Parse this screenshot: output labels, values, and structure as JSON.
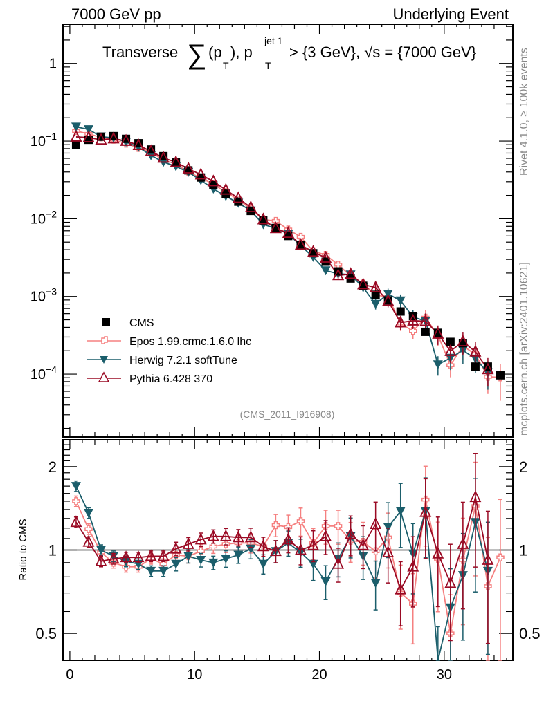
{
  "header": {
    "left_label": "7000 GeV pp",
    "right_label": "Underlying Event",
    "title_prefix": "Transverse",
    "title_sum": "∑",
    "title_part1": "(p",
    "title_sub1": "T",
    "title_part2": "), p",
    "title_sup": "jet 1",
    "title_sub2": "T",
    "title_part3": " > {3 GeV}, √s = {7000 GeV}"
  },
  "side_labels": {
    "rivet": "Rivet 4.1.0, ≥ 100k events",
    "mcplots": "mcplots.cern.ch [arXiv:2401.10621]"
  },
  "analysis_id": "(CMS_2011_I916908)",
  "colors": {
    "cms": "#000000",
    "epos": "#f58080",
    "herwig": "#1b5e6b",
    "pythia": "#9a0a24"
  },
  "chart_data": [
    {
      "type": "scatter",
      "panel": "main",
      "title": "Transverse ∑(pT), pT^jet1 > {3 GeV}, √s = {7000 GeV}",
      "xlabel": "",
      "ylabel": "",
      "yscale": "log",
      "xlim": [
        -0.55,
        35.5
      ],
      "ylim": [
        1.55e-05,
        3.2
      ],
      "yticks": [
        {
          "value": 1,
          "label": "1"
        },
        {
          "value": 0.1,
          "label": "10",
          "exp": "−1"
        },
        {
          "value": 0.01,
          "label": "10",
          "exp": "−2"
        },
        {
          "value": 0.001,
          "label": "10",
          "exp": "−3"
        },
        {
          "value": 0.0001,
          "label": "10",
          "exp": "−4"
        }
      ],
      "legend": {
        "position": "bottom-left",
        "entries": [
          "CMS",
          "Epos 1.99.crmc.1.6.0 lhc",
          "Herwig 7.2.1 softTune",
          "Pythia 6.428 370"
        ]
      },
      "x": [
        0.5,
        1.5,
        2.5,
        3.5,
        4.5,
        5.5,
        6.5,
        7.5,
        8.5,
        9.5,
        10.5,
        11.5,
        12.5,
        13.5,
        14.5,
        15.5,
        16.5,
        17.5,
        18.5,
        19.5,
        20.5,
        21.5,
        22.5,
        23.5,
        24.5,
        25.5,
        26.5,
        27.5,
        28.5,
        29.5,
        30.5,
        31.5,
        32.5,
        33.5,
        34.5
      ],
      "series": [
        {
          "name": "CMS",
          "marker": "square",
          "values": [
            0.09,
            0.104,
            0.114,
            0.116,
            0.107,
            0.094,
            0.078,
            0.064,
            0.053,
            0.042,
            0.034,
            0.027,
            0.021,
            0.0166,
            0.0126,
            0.0095,
            0.0076,
            0.006,
            0.0046,
            0.0036,
            0.0028,
            0.0021,
            0.0017,
            0.00137,
            0.00105,
            0.00089,
            0.00064,
            0.00056,
            0.00035,
            0.00034,
            0.00026,
            0.00025,
            0.000125,
            0.000125,
            9.65e-05
          ]
        }
      ]
    },
    {
      "type": "line",
      "panel": "ratio",
      "ylabel": "Ratio to CMS",
      "yscale": "log",
      "xlim": [
        -0.55,
        35.5
      ],
      "ylim": [
        0.4,
        2.5
      ],
      "reference_line": 1,
      "xticks": [
        0,
        10,
        20,
        30
      ],
      "yticks": [
        0.5,
        1,
        2
      ],
      "x": [
        0.5,
        1.5,
        2.5,
        3.5,
        4.5,
        5.5,
        6.5,
        7.5,
        8.5,
        9.5,
        10.5,
        11.5,
        12.5,
        13.5,
        14.5,
        15.5,
        16.5,
        17.5,
        18.5,
        19.5,
        20.5,
        21.5,
        22.5,
        23.5,
        24.5,
        25.5,
        26.5,
        27.5,
        28.5,
        29.5,
        30.5,
        31.5,
        32.5,
        33.5,
        34.5
      ],
      "series": [
        {
          "name": "Epos 1.99.crmc.1.6.0 lhc",
          "marker": "cross-open",
          "values": [
            1.5,
            1.19,
            0.98,
            0.9,
            0.87,
            0.87,
            0.93,
            0.89,
            0.96,
            0.95,
            0.99,
            1.03,
            1.05,
            1.06,
            1.06,
            1.03,
            1.23,
            1.21,
            1.27,
            1.06,
            1.22,
            1.22,
            1.08,
            1.07,
            0.99,
            1.11,
            0.7,
            0.64,
            1.52,
            0.93,
            0.5,
            0.92,
            1.44,
            0.74,
            0.94
          ],
          "rel_err": [
            0.02,
            0.02,
            0.02,
            0.02,
            0.02,
            0.02,
            0.02,
            0.02,
            0.03,
            0.03,
            0.03,
            0.03,
            0.04,
            0.04,
            0.05,
            0.05,
            0.06,
            0.07,
            0.08,
            0.09,
            0.1,
            0.1,
            0.12,
            0.13,
            0.15,
            0.17,
            0.2,
            0.22,
            0.25,
            0.28,
            0.3,
            0.33,
            0.35,
            0.4,
            0.5
          ]
        },
        {
          "name": "Herwig 7.2.1 softTune",
          "marker": "triangle-down-filled",
          "values": [
            1.7,
            1.36,
            1.0,
            0.95,
            0.91,
            0.89,
            0.84,
            0.84,
            0.89,
            0.95,
            0.92,
            0.9,
            0.93,
            0.96,
            1.01,
            0.89,
            0.99,
            1.06,
            0.98,
            0.89,
            0.77,
            0.93,
            1.12,
            0.95,
            0.76,
            1.21,
            1.38,
            0.97,
            1.38,
            0.39,
            0.62,
            0.81,
            1.26,
            0.84,
            null
          ],
          "rel_err": [
            0.02,
            0.02,
            0.02,
            0.02,
            0.02,
            0.02,
            0.02,
            0.02,
            0.03,
            0.03,
            0.03,
            0.03,
            0.04,
            0.04,
            0.05,
            0.05,
            0.06,
            0.07,
            0.08,
            0.09,
            0.1,
            0.1,
            0.12,
            0.13,
            0.15,
            0.17,
            0.2,
            0.22,
            0.25,
            0.28,
            0.3,
            0.33,
            0.35,
            0.4,
            0.5
          ]
        },
        {
          "name": "Pythia 6.428 370",
          "marker": "triangle-up-open",
          "values": [
            1.26,
            1.07,
            0.91,
            0.93,
            0.94,
            0.94,
            0.95,
            0.95,
            1.01,
            1.05,
            1.09,
            1.12,
            1.12,
            1.11,
            1.11,
            1.03,
            0.99,
            1.09,
            1.0,
            1.04,
            1.12,
            0.89,
            1.14,
            1.04,
            1.24,
            0.98,
            0.72,
            0.87,
            1.37,
            0.97,
            0.76,
            1.05,
            1.55,
            0.92,
            null
          ],
          "rel_err": [
            0.02,
            0.02,
            0.02,
            0.02,
            0.02,
            0.02,
            0.02,
            0.02,
            0.03,
            0.03,
            0.03,
            0.03,
            0.04,
            0.04,
            0.05,
            0.05,
            0.06,
            0.07,
            0.08,
            0.09,
            0.1,
            0.1,
            0.12,
            0.13,
            0.15,
            0.17,
            0.2,
            0.22,
            0.25,
            0.28,
            0.3,
            0.33,
            0.35,
            0.4,
            0.5
          ]
        }
      ]
    }
  ]
}
